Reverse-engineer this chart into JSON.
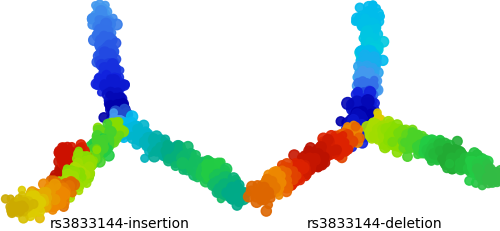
{
  "label_left": "rs3833144-insertion",
  "label_right": "rs3833144-deletion",
  "label_fontsize": 10,
  "label_color": "#000000",
  "background_color": "#ffffff",
  "figwidth": 5.0,
  "figheight": 2.32,
  "dpi": 100,
  "blue": "#1122dd",
  "dark_blue": "#0000aa",
  "sky_blue": "#4499ee",
  "cyan": "#00bbee",
  "teal": "#00aa88",
  "green": "#22cc44",
  "lime": "#88dd00",
  "yellow_green": "#aadd00",
  "yellow": "#ddcc00",
  "orange": "#ee8800",
  "dark_orange": "#dd6600",
  "red": "#dd2200",
  "dark_red": "#bb1100"
}
